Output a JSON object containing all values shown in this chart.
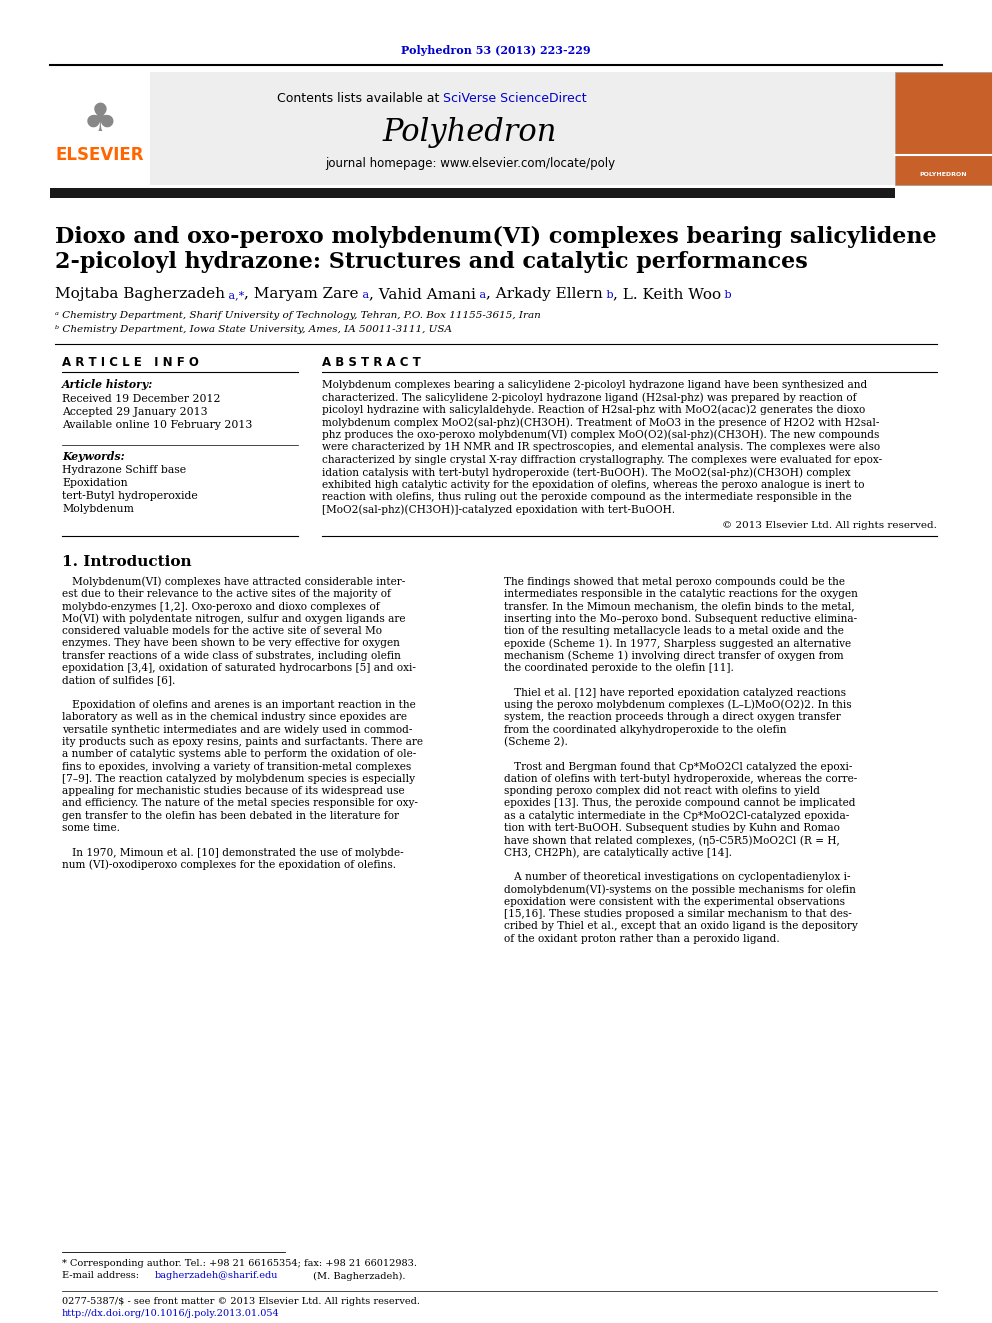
{
  "journal_ref": "Polyhedron 53 (2013) 223-229",
  "journal_name": "Polyhedron",
  "contents_line": "Contents lists available at SciVerse ScienceDirect",
  "homepage": "journal homepage: www.elsevier.com/locate/poly",
  "title_line1": "Dioxo and oxo-peroxo molybdenum(VI) complexes bearing salicylidene",
  "title_line2": "2-picoloyl hydrazone: Structures and catalytic performances",
  "affil1": "ᵃ Chemistry Department, Sharif University of Technology, Tehran, P.O. Box 11155-3615, Iran",
  "affil2": "ᵇ Chemistry Department, Iowa State University, Ames, IA 50011-3111, USA",
  "article_info_header": "A R T I C L E   I N F O",
  "abstract_header": "A B S T R A C T",
  "article_history_label": "Article history:",
  "received": "Received 19 December 2012",
  "accepted": "Accepted 29 January 2013",
  "available": "Available online 10 February 2013",
  "keywords_label": "Keywords:",
  "keywords": [
    "Hydrazone Schiff base",
    "Epoxidation",
    "tert-Butyl hydroperoxide",
    "Molybdenum"
  ],
  "copyright": "© 2013 Elsevier Ltd. All rights reserved.",
  "intro_header": "1. Introduction",
  "footnote_star": "* Corresponding author. Tel.: +98 21 66165354; fax: +98 21 66012983.",
  "footnote_email_prefix": "E-mail address: ",
  "footnote_email_link": "bagherzadeh@sharif.edu",
  "footnote_email_suffix": " (M. Bagherzadeh).",
  "footer_issn": "0277-5387/$ - see front matter © 2013 Elsevier Ltd. All rights reserved.",
  "footer_doi": "http://dx.doi.org/10.1016/j.poly.2013.01.054",
  "bg_color": "#FFFFFF",
  "header_bg": "#EEEEEE",
  "link_color": "#0000CC",
  "elsevier_orange": "#FF6600",
  "black_bar_color": "#1a1a1a",
  "abstract_lines": [
    "Molybdenum complexes bearing a salicylidene 2-picoloyl hydrazone ligand have been synthesized and",
    "characterized. The salicylidene 2-picoloyl hydrazone ligand (H2sal-phz) was prepared by reaction of",
    "picoloyl hydrazine with salicylaldehyde. Reaction of H2sal-phz with MoO2(acac)2 generates the dioxo",
    "molybdenum complex MoO2(sal-phz)(CH3OH). Treatment of MoO3 in the presence of H2O2 with H2sal-",
    "phz produces the oxo-peroxo molybdenum(VI) complex MoO(O2)(sal-phz)(CH3OH). The new compounds",
    "were characterized by 1H NMR and IR spectroscopies, and elemental analysis. The complexes were also",
    "characterized by single crystal X-ray diffraction crystallography. The complexes were evaluated for epox-",
    "idation catalysis with tert-butyl hydroperoxide (tert-BuOOH). The MoO2(sal-phz)(CH3OH) complex",
    "exhibited high catalytic activity for the epoxidation of olefins, whereas the peroxo analogue is inert to",
    "reaction with olefins, thus ruling out the peroxide compound as the intermediate responsible in the",
    "[MoO2(sal-phz)(CH3OH)]-catalyzed epoxidation with tert-BuOOH."
  ],
  "intro_col1_lines": [
    "   Molybdenum(VI) complexes have attracted considerable inter-",
    "est due to their relevance to the active sites of the majority of",
    "molybdo-enzymes [1,2]. Oxo-peroxo and dioxo complexes of",
    "Mo(VI) with polydentate nitrogen, sulfur and oxygen ligands are",
    "considered valuable models for the active site of several Mo",
    "enzymes. They have been shown to be very effective for oxygen",
    "transfer reactions of a wide class of substrates, including olefin",
    "epoxidation [3,4], oxidation of saturated hydrocarbons [5] and oxi-",
    "dation of sulfides [6].",
    "",
    "   Epoxidation of olefins and arenes is an important reaction in the",
    "laboratory as well as in the chemical industry since epoxides are",
    "versatile synthetic intermediates and are widely used in commod-",
    "ity products such as epoxy resins, paints and surfactants. There are",
    "a number of catalytic systems able to perform the oxidation of ole-",
    "fins to epoxides, involving a variety of transition-metal complexes",
    "[7–9]. The reaction catalyzed by molybdenum species is especially",
    "appealing for mechanistic studies because of its widespread use",
    "and efficiency. The nature of the metal species responsible for oxy-",
    "gen transfer to the olefin has been debated in the literature for",
    "some time.",
    "",
    "   In 1970, Mimoun et al. [10] demonstrated the use of molybde-",
    "num (VI)-oxodiperoxo complexes for the epoxidation of olefins."
  ],
  "intro_col2_lines": [
    "The findings showed that metal peroxo compounds could be the",
    "intermediates responsible in the catalytic reactions for the oxygen",
    "transfer. In the Mimoun mechanism, the olefin binds to the metal,",
    "inserting into the Mo–peroxo bond. Subsequent reductive elimina-",
    "tion of the resulting metallacycle leads to a metal oxide and the",
    "epoxide (Scheme 1). In 1977, Sharpless suggested an alternative",
    "mechanism (Scheme 1) involving direct transfer of oxygen from",
    "the coordinated peroxide to the olefin [11].",
    "",
    "   Thiel et al. [12] have reported epoxidation catalyzed reactions",
    "using the peroxo molybdenum complexes (L–L)MoO(O2)2. In this",
    "system, the reaction proceeds through a direct oxygen transfer",
    "from the coordinated alkyhydroperoxide to the olefin",
    "(Scheme 2).",
    "",
    "   Trost and Bergman found that Cp*MoO2Cl catalyzed the epoxi-",
    "dation of olefins with tert-butyl hydroperoxide, whereas the corre-",
    "sponding peroxo complex did not react with olefins to yield",
    "epoxides [13]. Thus, the peroxide compound cannot be implicated",
    "as a catalytic intermediate in the Cp*MoO2Cl-catalyzed epoxida-",
    "tion with tert-BuOOH. Subsequent studies by Kuhn and Romao",
    "have shown that related complexes, (η5-C5R5)MoO2Cl (R = H,",
    "CH3, CH2Ph), are catalytically active [14].",
    "",
    "   A number of theoretical investigations on cyclopentadienylox i-",
    "domolybdenum(VI)-systems on the possible mechanisms for olefin",
    "epoxidation were consistent with the experimental observations",
    "[15,16]. These studies proposed a similar mechanism to that des-",
    "cribed by Thiel et al., except that an oxido ligand is the depository",
    "of the oxidant proton rather than a peroxido ligand."
  ]
}
